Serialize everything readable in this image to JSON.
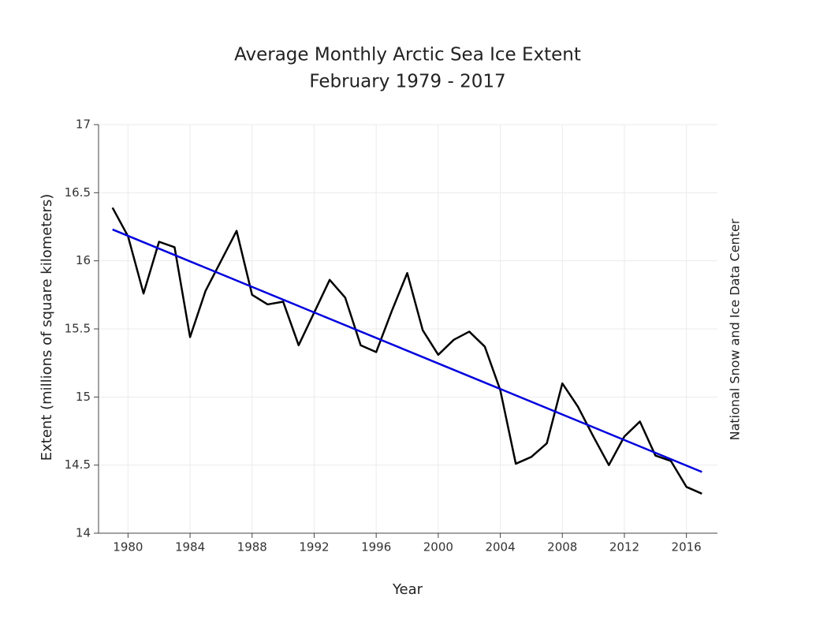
{
  "chart_data": {
    "type": "line",
    "title": "Average Monthly Arctic Sea Ice Extent",
    "subtitle": "February 1979 - 2017",
    "x_label": "Year",
    "y_label": "Extent (millions of square kilometers)",
    "annotation": "National Snow and Ice Data Center",
    "x": [
      1979,
      1980,
      1981,
      1982,
      1983,
      1984,
      1985,
      1986,
      1987,
      1988,
      1989,
      1990,
      1991,
      1992,
      1993,
      1994,
      1995,
      1996,
      1997,
      1998,
      1999,
      2000,
      2001,
      2002,
      2003,
      2004,
      2005,
      2006,
      2007,
      2008,
      2009,
      2010,
      2011,
      2012,
      2013,
      2014,
      2015,
      2016,
      2017
    ],
    "series": [
      {
        "color": "#000000",
        "values": [
          16.39,
          16.18,
          15.76,
          16.14,
          16.1,
          15.44,
          15.78,
          16.0,
          16.22,
          15.75,
          15.68,
          15.7,
          15.38,
          15.62,
          15.86,
          15.73,
          15.38,
          15.33,
          15.63,
          15.91,
          15.49,
          15.31,
          15.42,
          15.48,
          15.37,
          15.05,
          14.51,
          14.56,
          14.66,
          15.1,
          14.93,
          14.71,
          14.5,
          14.71,
          14.82,
          14.57,
          14.53,
          14.34,
          14.29
        ]
      },
      {
        "color": "#0000dd",
        "x": [
          1979,
          2017
        ],
        "values": [
          16.23,
          14.45
        ]
      }
    ],
    "xlim": [
      1978.1,
      2018
    ],
    "xticks": [
      1980,
      1984,
      1988,
      1992,
      1996,
      2000,
      2004,
      2008,
      2012,
      2016
    ],
    "ylim": [
      14,
      17
    ],
    "yticks": [
      14,
      14.5,
      15,
      15.5,
      16,
      16.5,
      17
    ],
    "grid": true
  }
}
